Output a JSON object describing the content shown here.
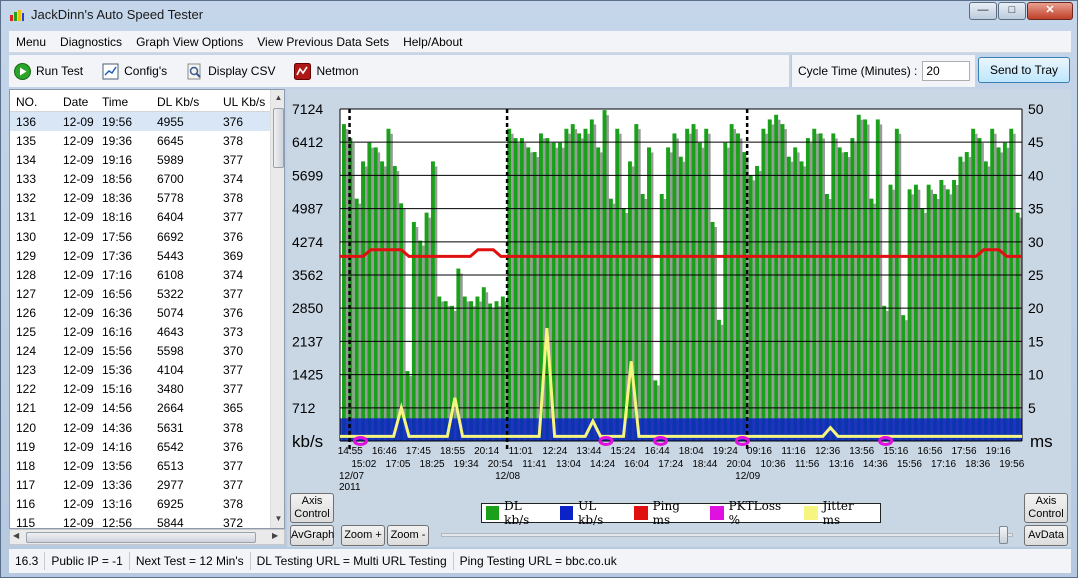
{
  "window": {
    "title": "JackDinn's Auto Speed Tester",
    "minimize": "—",
    "maximize": "□",
    "close": "✕"
  },
  "menu": [
    "Menu",
    "Diagnostics",
    "Graph View Options",
    "View Previous Data Sets",
    "Help/About"
  ],
  "toolbar": {
    "run_test": "Run Test",
    "config": "Config's",
    "display_csv": "Display CSV",
    "netmon": "Netmon",
    "cycle_label": "Cycle Time (Minutes) :",
    "cycle_value": "20",
    "send_to_tray": "Send to Tray"
  },
  "grid": {
    "headers": [
      "NO.",
      "Date",
      "Time",
      "DL Kb/s",
      "UL Kb/s"
    ],
    "rows": [
      [
        "136",
        "12-09",
        "19:56",
        "4955",
        "376"
      ],
      [
        "135",
        "12-09",
        "19:36",
        "6645",
        "378"
      ],
      [
        "134",
        "12-09",
        "19:16",
        "5989",
        "377"
      ],
      [
        "133",
        "12-09",
        "18:56",
        "6700",
        "374"
      ],
      [
        "132",
        "12-09",
        "18:36",
        "5778",
        "378"
      ],
      [
        "131",
        "12-09",
        "18:16",
        "6404",
        "377"
      ],
      [
        "130",
        "12-09",
        "17:56",
        "6692",
        "376"
      ],
      [
        "129",
        "12-09",
        "17:36",
        "5443",
        "369"
      ],
      [
        "128",
        "12-09",
        "17:16",
        "6108",
        "374"
      ],
      [
        "127",
        "12-09",
        "16:56",
        "5322",
        "377"
      ],
      [
        "126",
        "12-09",
        "16:36",
        "5074",
        "376"
      ],
      [
        "125",
        "12-09",
        "16:16",
        "4643",
        "373"
      ],
      [
        "124",
        "12-09",
        "15:56",
        "5598",
        "370"
      ],
      [
        "123",
        "12-09",
        "15:36",
        "4104",
        "377"
      ],
      [
        "122",
        "12-09",
        "15:16",
        "3480",
        "377"
      ],
      [
        "121",
        "12-09",
        "14:56",
        "2664",
        "365"
      ],
      [
        "120",
        "12-09",
        "14:36",
        "5631",
        "378"
      ],
      [
        "119",
        "12-09",
        "14:16",
        "6542",
        "376"
      ],
      [
        "118",
        "12-09",
        "13:56",
        "6513",
        "377"
      ],
      [
        "117",
        "12-09",
        "13:36",
        "2977",
        "377"
      ],
      [
        "116",
        "12-09",
        "13:16",
        "6925",
        "378"
      ],
      [
        "115",
        "12-09",
        "12:56",
        "5844",
        "372"
      ]
    ],
    "scroll_up": "▲",
    "scroll_down": "▼",
    "scroll_left": "◀",
    "scroll_right": "▶"
  },
  "graph": {
    "left_unit": "kb/s",
    "right_unit": "ms",
    "axis_control_left": "Axis Control",
    "axis_control_right": "Axis Control",
    "avgraph": "AvGraph",
    "avdata": "AvData",
    "zoom_in": "Zoom +",
    "zoom_out": "Zoom -",
    "colors": {
      "dl": "#1aa01a",
      "ul": "#0a22c8",
      "ping": "#e01010",
      "pktloss": "#e010e0",
      "jitter": "#f5f580",
      "plot_bg": "#ffffff"
    }
  },
  "chart_data": {
    "type": "bar",
    "left_ticks": [
      "7124",
      "6412",
      "5699",
      "4987",
      "4274",
      "3562",
      "2850",
      "2137",
      "1425",
      "712"
    ],
    "right_ticks": [
      "50",
      "45",
      "40",
      "35",
      "30",
      "25",
      "20",
      "15",
      "10",
      "5"
    ],
    "ylim_left": [
      0,
      7124
    ],
    "ylim_right": [
      0,
      50
    ],
    "xlabels_top": [
      "14:55",
      "16:46",
      "17:45",
      "18:55",
      "20:14",
      "11:01",
      "12:24",
      "13:44",
      "15:24",
      "16:44",
      "18:04",
      "19:24",
      "09:16",
      "11:16",
      "12:36",
      "13:56",
      "15:16",
      "16:56",
      "17:56",
      "19:16"
    ],
    "xlabels_bottom": [
      "15:02",
      "17:05",
      "18:25",
      "19:34",
      "20:54",
      "11:41",
      "13:04",
      "14:24",
      "16:04",
      "17:24",
      "18:44",
      "20:04",
      "10:36",
      "11:56",
      "13:16",
      "14:36",
      "15:56",
      "17:16",
      "18:36",
      "19:56"
    ],
    "date_labels": [
      "12/07 2011",
      "12/08",
      "12/09"
    ],
    "dl": [
      6800,
      6500,
      5200,
      6000,
      6400,
      6300,
      6000,
      6700,
      5900,
      5100,
      1500,
      4700,
      4300,
      4900,
      6000,
      3100,
      3000,
      2900,
      3700,
      3100,
      3000,
      3100,
      3300,
      2950,
      3000,
      3100,
      6700,
      6500,
      6500,
      6300,
      6200,
      6600,
      6500,
      6400,
      6400,
      6700,
      6800,
      6600,
      6700,
      6900,
      6300,
      7100,
      5200,
      6700,
      5000,
      6000,
      6800,
      5300,
      6300,
      1300,
      5300,
      6300,
      6600,
      6100,
      6700,
      6800,
      6400,
      6700,
      4700,
      2600,
      6400,
      6800,
      6600,
      6200,
      5700,
      5900,
      6700,
      6900,
      7000,
      6800,
      6100,
      6300,
      6000,
      6500,
      6700,
      6600,
      5300,
      6600,
      6300,
      6200,
      6500,
      7000,
      6900,
      5200,
      6900,
      2900,
      5500,
      6700,
      2700,
      5400,
      5500,
      5000,
      5500,
      5300,
      5600,
      5400,
      5600,
      6100,
      6200,
      6700,
      6500,
      6000,
      6700,
      6300,
      6400,
      6700,
      4900
    ]
  },
  "legend": [
    "DL kb/s",
    "UL kb/s",
    "Ping ms",
    "PKTLoss %",
    "Jitter ms"
  ],
  "status": [
    "16.3",
    "Public IP = -1",
    "Next Test = 12 Min's",
    "DL Testing URL = Multi URL Testing",
    "Ping Testing URL = bbc.co.uk"
  ]
}
